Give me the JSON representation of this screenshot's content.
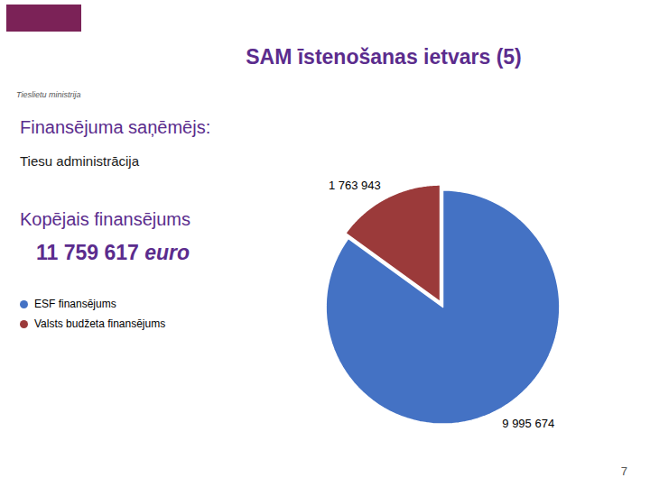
{
  "chart_data": {
    "type": "pie",
    "title": "SAM īstenošanas ietvars (5)",
    "annotations": [
      "Tieslietu ministrija",
      "Finansējuma saņēmējs:",
      "Tiesu administrācija",
      "Kopējais finansējums",
      "11 759 617 ",
      "euro",
      "7"
    ],
    "categories": [
      "ESF finansējums",
      "Valsts budžeta finansējums"
    ],
    "values": [
      9995674,
      1763943
    ],
    "value_labels": [
      "9 995 674",
      "1 763 943"
    ],
    "colors": [
      "#4472C4",
      "#9B3A3A"
    ],
    "data_labels": true,
    "legend": "left"
  }
}
